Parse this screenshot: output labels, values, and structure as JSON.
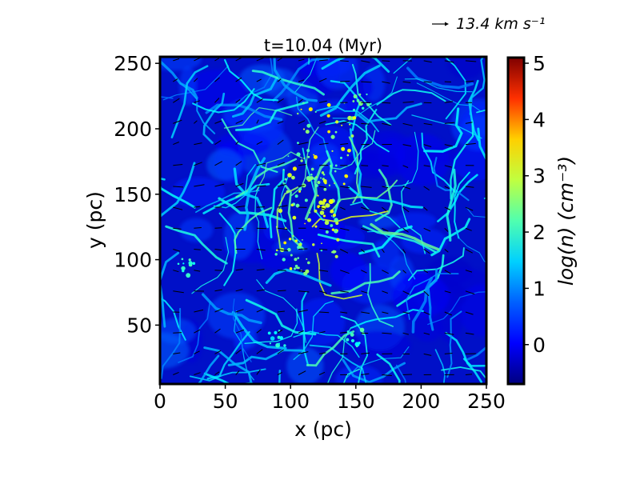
{
  "chart_data": {
    "type": "heatmap",
    "title": "t=10.04 (Myr)",
    "xlabel": "x (pc)",
    "ylabel": "y (pc)",
    "xlim": [
      0,
      250
    ],
    "ylim": [
      5,
      255
    ],
    "xticks": [
      0,
      50,
      100,
      150,
      200,
      250
    ],
    "yticks": [
      50,
      100,
      150,
      200,
      250
    ],
    "colorbar": {
      "label": "log(n) (cm⁻³)",
      "range": [
        -0.7,
        5.1
      ],
      "ticks": [
        0,
        1,
        2,
        3,
        4,
        5
      ],
      "colormap": "jet"
    },
    "quiver_key": {
      "label": "13.4 km s⁻¹",
      "value": 13.4
    },
    "dense_features": [
      {
        "x": 125,
        "y": 140,
        "logn": 3.0
      },
      {
        "x": 120,
        "y": 160,
        "logn": 2.5
      },
      {
        "x": 155,
        "y": 220,
        "logn": 2.2
      },
      {
        "x": 150,
        "y": 40,
        "logn": 2.0
      },
      {
        "x": 20,
        "y": 95,
        "logn": 2.0
      },
      {
        "x": 110,
        "y": 95,
        "logn": 2.5
      },
      {
        "x": 90,
        "y": 40,
        "logn": 1.8
      }
    ],
    "colors": {
      "colormap": [
        "#00007f",
        "#0000ff",
        "#007fff",
        "#00ffff",
        "#7fff7f",
        "#ffff00",
        "#ff7f00",
        "#ff0000",
        "#7f0000"
      ]
    }
  }
}
